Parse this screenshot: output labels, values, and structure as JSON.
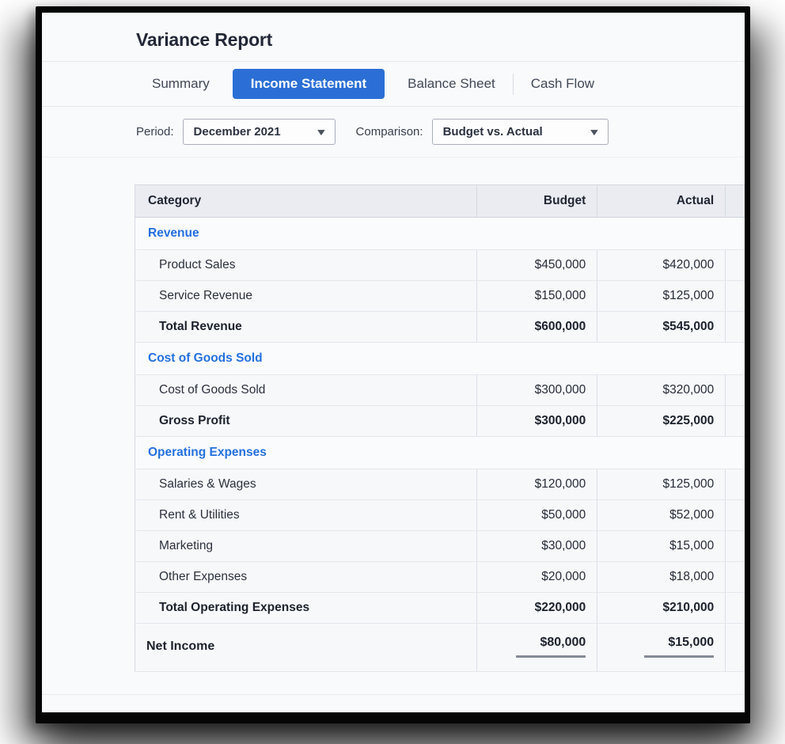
{
  "header": {
    "title": "Variance Report"
  },
  "tabs": [
    {
      "label": "Summary",
      "active": false
    },
    {
      "label": "Income Statement",
      "active": true
    },
    {
      "label": "Balance Sheet",
      "active": false
    },
    {
      "label": "Cash Flow",
      "active": false
    }
  ],
  "filters": {
    "period_label": "Period:",
    "period_value": "December 2021",
    "comparison_label": "Comparison:",
    "comparison_value": "Budget vs. Actual",
    "caret_glyph": "▼"
  },
  "table": {
    "columns": [
      "Category",
      "Budget",
      "Actual",
      ""
    ],
    "rows": [
      {
        "type": "section",
        "label": "Revenue"
      },
      {
        "type": "data",
        "label": "Product Sales",
        "budget": "$450,000",
        "actual": "$420,000"
      },
      {
        "type": "data",
        "label": "Service Revenue",
        "budget": "$150,000",
        "actual": "$125,000"
      },
      {
        "type": "total",
        "label": "Total Revenue",
        "budget": "$600,000",
        "actual": "$545,000"
      },
      {
        "type": "section",
        "label": "Cost of Goods Sold"
      },
      {
        "type": "data",
        "label": "Cost of Goods Sold",
        "budget": "$300,000",
        "actual": "$320,000"
      },
      {
        "type": "total",
        "label": "Gross Profit",
        "budget": "$300,000",
        "actual": "$225,000"
      },
      {
        "type": "section",
        "label": "Operating Expenses"
      },
      {
        "type": "data",
        "label": "Salaries & Wages",
        "budget": "$120,000",
        "actual": "$125,000"
      },
      {
        "type": "data",
        "label": "Rent & Utilities",
        "budget": "$50,000",
        "actual": "$52,000"
      },
      {
        "type": "data",
        "label": "Marketing",
        "budget": "$30,000",
        "actual": "$15,000"
      },
      {
        "type": "data",
        "label": "Other Expenses",
        "budget": "$20,000",
        "actual": "$18,000"
      },
      {
        "type": "total",
        "label": "Total Operating Expenses",
        "budget": "$220,000",
        "actual": "$210,000"
      },
      {
        "type": "net",
        "label": "Net Income",
        "budget": "$80,000",
        "actual": "$15,000"
      }
    ]
  },
  "colors": {
    "accent_blue": "#2b6fd6",
    "section_blue": "#2470e0",
    "underline_gray": "#858b97",
    "frame_black": "#050505"
  }
}
